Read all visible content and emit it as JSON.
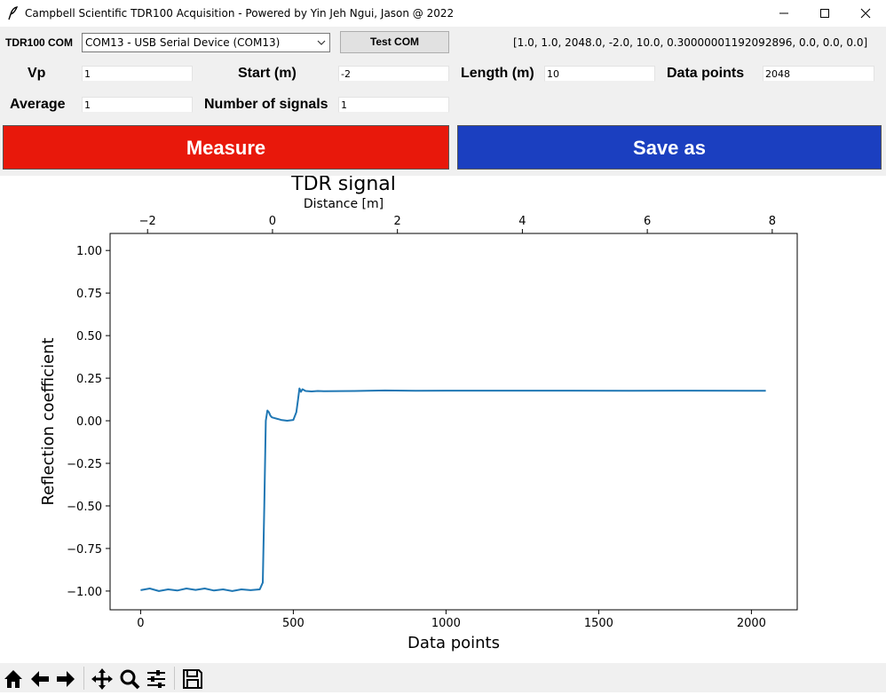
{
  "window": {
    "title": "Campbell Scientific TDR100 Acquisition - Powered by Yin Jeh Ngui, Jason @ 2022"
  },
  "controls": {
    "com_label": "TDR100 COM",
    "com_value": "COM13 - USB Serial Device (COM13)",
    "test_com_label": "Test COM",
    "params_readout": "[1.0, 1.0, 2048.0, -2.0, 10.0, 0.30000001192092896, 0.0, 0.0, 0.0]",
    "vp_label": "Vp",
    "vp_value": "1",
    "start_label": "Start (m)",
    "start_value": "-2",
    "length_label": "Length (m)",
    "length_value": "10",
    "datapoints_label": "Data points",
    "datapoints_value": "2048",
    "average_label": "Average",
    "average_value": "1",
    "nsignals_label": "Number of signals",
    "nsignals_value": "1",
    "measure_label": "Measure",
    "saveas_label": "Save as",
    "measure_color": "#e8180b",
    "saveas_color": "#1b3fc0"
  },
  "chart_data": {
    "type": "line",
    "title": "TDR signal",
    "xlabel": "Data points",
    "ylabel": "Reflection coefficient",
    "top_xlabel": "Distance [m]",
    "xlim": [
      -100,
      2150
    ],
    "ylim": [
      -1.11,
      1.1
    ],
    "xticks": [
      0,
      500,
      1000,
      1500,
      2000
    ],
    "xtick_labels": [
      "0",
      "500",
      "1000",
      "1500",
      "2000"
    ],
    "yticks": [
      1.0,
      0.75,
      0.5,
      0.25,
      0.0,
      -0.25,
      -0.5,
      -0.75,
      -1.0
    ],
    "ytick_labels": [
      "1.00",
      "0.75",
      "0.50",
      "0.25",
      "0.00",
      "−0.25",
      "−0.50",
      "−0.75",
      "−1.00"
    ],
    "top_ticks": [
      -2,
      0,
      2,
      4,
      6,
      8
    ],
    "top_tick_labels": [
      "−2",
      "0",
      "2",
      "4",
      "6",
      "8"
    ],
    "top_xlim": [
      -2.6,
      8.4
    ],
    "grid": false,
    "line_color": "#1f77b4",
    "series": [
      {
        "x": [
          0,
          30,
          60,
          90,
          120,
          150,
          180,
          210,
          240,
          270,
          300,
          330,
          360,
          390,
          400,
          405,
          410,
          415,
          420,
          425,
          430,
          440,
          450,
          460,
          480,
          500,
          510,
          515,
          520,
          525,
          530,
          540,
          560,
          580,
          600,
          700,
          800,
          900,
          1000,
          1200,
          1400,
          1600,
          1800,
          2000,
          2047
        ],
        "y": [
          -0.995,
          -0.985,
          -1.0,
          -0.99,
          -0.997,
          -0.985,
          -0.993,
          -0.985,
          -0.997,
          -0.99,
          -1.0,
          -0.99,
          -0.995,
          -0.99,
          -0.95,
          -0.5,
          0.0,
          0.06,
          0.05,
          0.03,
          0.02,
          0.015,
          0.01,
          0.005,
          0.0,
          0.005,
          0.05,
          0.12,
          0.19,
          0.17,
          0.185,
          0.175,
          0.172,
          0.175,
          0.173,
          0.175,
          0.178,
          0.176,
          0.177,
          0.177,
          0.177,
          0.176,
          0.177,
          0.176,
          0.176
        ]
      }
    ]
  },
  "toolbar": {
    "icons": [
      "home-icon",
      "back-icon",
      "forward-icon",
      "pan-icon",
      "zoom-icon",
      "configure-icon",
      "save-icon"
    ]
  }
}
